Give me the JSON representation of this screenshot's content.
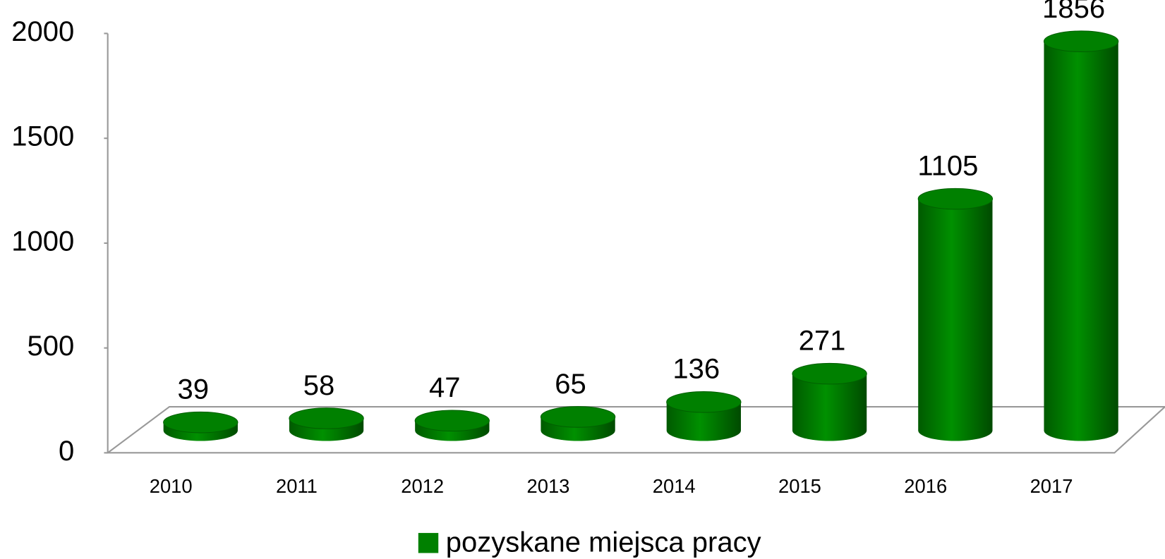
{
  "chart_data": {
    "type": "bar",
    "categories": [
      "2010",
      "2011",
      "2012",
      "2013",
      "2014",
      "2015",
      "2016",
      "2017"
    ],
    "series": [
      {
        "name": "pozyskane miejsca pracy",
        "color": "#008000",
        "values": [
          39,
          58,
          47,
          65,
          136,
          271,
          1105,
          1856
        ]
      }
    ],
    "ylim": [
      0,
      2000
    ],
    "yticks": [
      0,
      500,
      1000,
      1500,
      2000
    ],
    "legend": "bottom"
  }
}
